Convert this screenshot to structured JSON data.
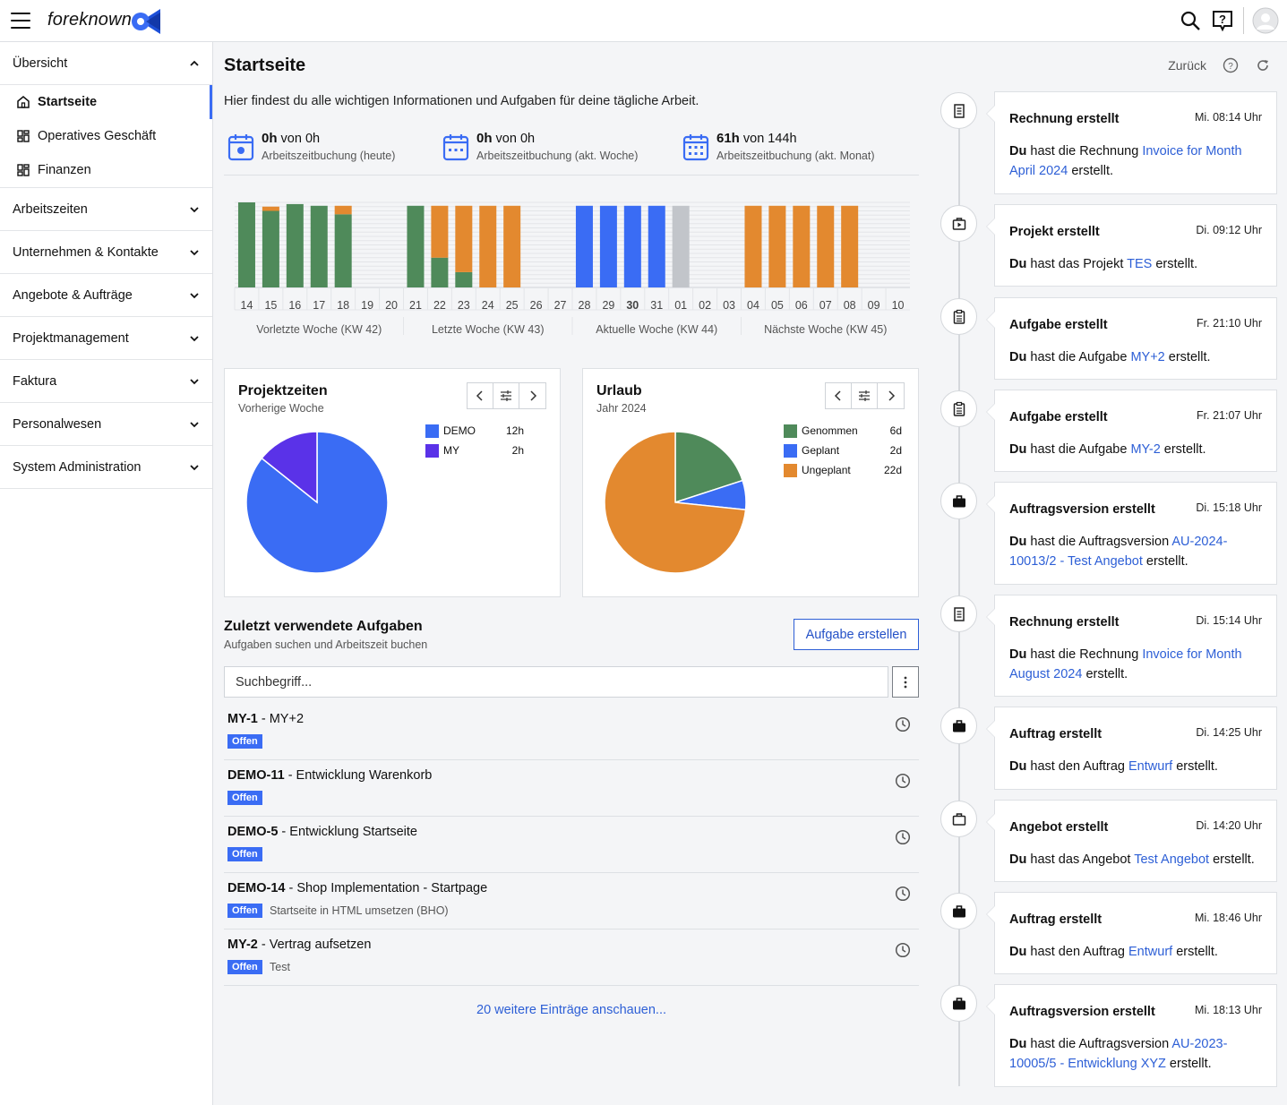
{
  "app": {
    "name": "foreknown"
  },
  "sidebar": {
    "open_group": "Übersicht",
    "open_items": [
      {
        "label": "Startseite",
        "icon": "home-icon",
        "active": true
      },
      {
        "label": "Operatives Geschäft",
        "icon": "dashboard-icon"
      },
      {
        "label": "Finanzen",
        "icon": "dashboard-icon"
      }
    ],
    "groups": [
      "Arbeitszeiten",
      "Unternehmen & Kontakte",
      "Angebote & Aufträge",
      "Projektmanagement",
      "Faktura",
      "Personalwesen",
      "System Administration"
    ]
  },
  "header": {
    "title": "Startseite",
    "back_label": "Zurück",
    "intro": "Hier findest du alle wichtigen Informationen und Aufgaben für deine tägliche Arbeit."
  },
  "stats": [
    {
      "value": "0h",
      "of": "von 0h",
      "label": "Arbeitszeitbuchung (heute)"
    },
    {
      "value": "0h",
      "of": "von 0h",
      "label": "Arbeitszeitbuchung (akt. Woche)"
    },
    {
      "value": "61h",
      "of": "von 144h",
      "label": "Arbeitszeitbuchung (akt. Monat)"
    }
  ],
  "colors": {
    "accent": "#3a6cf4",
    "green": "#4f8a5a",
    "orange": "#e3892f",
    "gray": "#c2c5ca",
    "purple": "#5a32e8"
  },
  "chart_data": [
    {
      "type": "bar",
      "stacked": true,
      "weeks": [
        {
          "label": "Vorletzte Woche (KW 42)",
          "days": [
            "14",
            "15",
            "16",
            "17",
            "18",
            "19",
            "20"
          ]
        },
        {
          "label": "Letzte Woche (KW 43)",
          "days": [
            "21",
            "22",
            "23",
            "24",
            "25",
            "26",
            "27"
          ]
        },
        {
          "label": "Aktuelle Woche (KW 44)",
          "days": [
            "28",
            "29",
            "30",
            "31",
            "01",
            "02",
            "03"
          ]
        },
        {
          "label": "Nächste Woche (KW 45)",
          "days": [
            "04",
            "05",
            "06",
            "07",
            "08",
            "09",
            "10"
          ]
        }
      ],
      "current_day": "30",
      "ylim": [
        0,
        10
      ],
      "bars": [
        [
          [
            {
              "v": 10,
              "c": "green"
            }
          ],
          [
            {
              "v": 9,
              "c": "green"
            },
            {
              "v": 0.5,
              "c": "orange"
            }
          ],
          [
            {
              "v": 9.8,
              "c": "green"
            }
          ],
          [
            {
              "v": 9.6,
              "c": "green"
            }
          ],
          [
            {
              "v": 8.6,
              "c": "green"
            },
            {
              "v": 1,
              "c": "orange"
            }
          ],
          [],
          []
        ],
        [
          [
            {
              "v": 9.6,
              "c": "green"
            }
          ],
          [
            {
              "v": 3.5,
              "c": "green"
            },
            {
              "v": 6.1,
              "c": "orange"
            }
          ],
          [
            {
              "v": 1.8,
              "c": "green"
            },
            {
              "v": 7.8,
              "c": "orange"
            }
          ],
          [
            {
              "v": 9.6,
              "c": "orange"
            }
          ],
          [
            {
              "v": 9.6,
              "c": "orange"
            }
          ],
          [],
          []
        ],
        [
          [
            {
              "v": 9.6,
              "c": "blue"
            }
          ],
          [
            {
              "v": 9.6,
              "c": "blue"
            }
          ],
          [
            {
              "v": 9.6,
              "c": "blue"
            }
          ],
          [
            {
              "v": 9.6,
              "c": "blue"
            }
          ],
          [
            {
              "v": 9.6,
              "c": "gray"
            }
          ],
          [],
          []
        ],
        [
          [
            {
              "v": 9.6,
              "c": "orange"
            }
          ],
          [
            {
              "v": 9.6,
              "c": "orange"
            }
          ],
          [
            {
              "v": 9.6,
              "c": "orange"
            }
          ],
          [
            {
              "v": 9.6,
              "c": "orange"
            }
          ],
          [
            {
              "v": 9.6,
              "c": "orange"
            }
          ],
          [],
          []
        ]
      ]
    },
    {
      "type": "pie",
      "title": "Projektzeiten",
      "subtitle": "Vorherige Woche",
      "slices": [
        {
          "label": "DEMO",
          "value": 12,
          "display": "12h",
          "color": "#3a6cf4"
        },
        {
          "label": "MY",
          "value": 2,
          "display": "2h",
          "color": "#5a32e8"
        }
      ]
    },
    {
      "type": "pie",
      "title": "Urlaub",
      "subtitle": "Jahr 2024",
      "slices": [
        {
          "label": "Genommen",
          "value": 6,
          "display": "6d",
          "color": "#4f8a5a"
        },
        {
          "label": "Geplant",
          "value": 2,
          "display": "2d",
          "color": "#3a6cf4"
        },
        {
          "label": "Ungeplant",
          "value": 22,
          "display": "22d",
          "color": "#e3892f"
        }
      ]
    }
  ],
  "tasks": {
    "title": "Zuletzt verwendete Aufgaben",
    "subtitle": "Aufgaben suchen und Arbeitszeit buchen",
    "create_label": "Aufgabe erstellen",
    "search_placeholder": "Suchbegriff...",
    "items": [
      {
        "key": "MY-1",
        "name": " - MY+2",
        "status": "Offen",
        "sub": ""
      },
      {
        "key": "DEMO-11",
        "name": " - Entwicklung Warenkorb",
        "status": "Offen",
        "sub": ""
      },
      {
        "key": "DEMO-5",
        "name": " - Entwicklung Startseite",
        "status": "Offen",
        "sub": ""
      },
      {
        "key": "DEMO-14",
        "name": " - Shop Implementation - Startpage",
        "status": "Offen",
        "sub": "Startseite in HTML umsetzen (BHO)"
      },
      {
        "key": "MY-2",
        "name": " - Vertrag aufsetzen",
        "status": "Offen",
        "sub": "Test"
      }
    ],
    "more_label": "20 weitere Einträge anschauen..."
  },
  "timeline": [
    {
      "icon": "invoice-icon",
      "title": "Rechnung erstellt",
      "date": "Mi. 08:14 Uhr",
      "pre": "hast die Rechnung ",
      "link": "Invoice for Month April 2024",
      "post": " erstellt."
    },
    {
      "icon": "project-icon",
      "title": "Projekt erstellt",
      "date": "Di. 09:12 Uhr",
      "pre": "hast das Projekt ",
      "link": "TES",
      "post": " erstellt."
    },
    {
      "icon": "task-icon",
      "title": "Aufgabe erstellt",
      "date": "Fr. 21:10 Uhr",
      "pre": "hast die Aufgabe ",
      "link": "MY+2",
      "post": " erstellt."
    },
    {
      "icon": "task-icon",
      "title": "Aufgabe erstellt",
      "date": "Fr. 21:07 Uhr",
      "pre": "hast die Aufgabe ",
      "link": "MY-2",
      "post": " erstellt."
    },
    {
      "icon": "order-icon",
      "title": "Auftragsversion erstellt",
      "date": "Di. 15:18 Uhr",
      "pre": "hast die Auftragsversion ",
      "link": "AU-2024-10013/2 - Test Angebot",
      "post": " erstellt."
    },
    {
      "icon": "invoice-icon",
      "title": "Rechnung erstellt",
      "date": "Di. 15:14 Uhr",
      "pre": "hast die Rechnung ",
      "link": "Invoice for Month August 2024",
      "post": " erstellt."
    },
    {
      "icon": "order-icon",
      "title": "Auftrag erstellt",
      "date": "Di. 14:25 Uhr",
      "pre": "hast den Auftrag ",
      "link": "Entwurf",
      "post": " erstellt."
    },
    {
      "icon": "offer-icon",
      "title": "Angebot erstellt",
      "date": "Di. 14:20 Uhr",
      "pre": "hast das Angebot ",
      "link": "Test Angebot",
      "post": " erstellt."
    },
    {
      "icon": "order-icon",
      "title": "Auftrag erstellt",
      "date": "Mi. 18:46 Uhr",
      "pre": "hast den Auftrag ",
      "link": "Entwurf",
      "post": " erstellt."
    },
    {
      "icon": "order-icon",
      "title": "Auftragsversion erstellt",
      "date": "Mi. 18:13 Uhr",
      "pre": "hast die Auftragsversion ",
      "link": "AU-2023-10005/5 - Entwicklung XYZ",
      "post": " erstellt."
    }
  ],
  "timeline_actor": "Du"
}
